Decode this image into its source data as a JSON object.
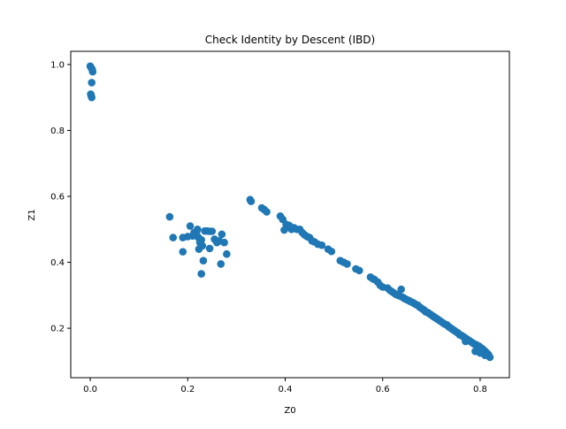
{
  "chart_data": {
    "type": "scatter",
    "title": "Check Identity by Descent (IBD)",
    "xlabel": "Z0",
    "ylabel": "Z1",
    "xlim": [
      -0.04,
      0.86
    ],
    "ylim": [
      0.05,
      1.04
    ],
    "xticks": [
      0.0,
      0.2,
      0.4,
      0.6,
      0.8
    ],
    "xtick_labels": [
      "0.0",
      "0.2",
      "0.4",
      "0.6",
      "0.8"
    ],
    "yticks": [
      0.2,
      0.4,
      0.6,
      0.8,
      1.0
    ],
    "ytick_labels": [
      "0.2",
      "0.4",
      "0.6",
      "0.8",
      "1.0"
    ],
    "grid": false,
    "legend": "none",
    "color": "#1f77b4",
    "series": [
      {
        "points": [
          [
            0.0,
            0.995
          ],
          [
            0.002,
            0.99
          ],
          [
            0.004,
            0.985
          ],
          [
            0.005,
            0.978
          ],
          [
            0.003,
            0.945
          ],
          [
            0.001,
            0.91
          ],
          [
            0.002,
            0.905
          ],
          [
            0.003,
            0.9
          ],
          [
            0.163,
            0.538
          ],
          [
            0.17,
            0.475
          ],
          [
            0.19,
            0.475
          ],
          [
            0.19,
            0.432
          ],
          [
            0.2,
            0.478
          ],
          [
            0.205,
            0.51
          ],
          [
            0.21,
            0.48
          ],
          [
            0.213,
            0.49
          ],
          [
            0.218,
            0.49
          ],
          [
            0.22,
            0.5
          ],
          [
            0.222,
            0.475
          ],
          [
            0.223,
            0.44
          ],
          [
            0.225,
            0.46
          ],
          [
            0.228,
            0.468
          ],
          [
            0.228,
            0.365
          ],
          [
            0.23,
            0.45
          ],
          [
            0.232,
            0.405
          ],
          [
            0.235,
            0.495
          ],
          [
            0.24,
            0.495
          ],
          [
            0.245,
            0.494
          ],
          [
            0.245,
            0.442
          ],
          [
            0.25,
            0.494
          ],
          [
            0.255,
            0.47
          ],
          [
            0.26,
            0.46
          ],
          [
            0.265,
            0.465
          ],
          [
            0.268,
            0.395
          ],
          [
            0.27,
            0.485
          ],
          [
            0.275,
            0.46
          ],
          [
            0.28,
            0.425
          ],
          [
            0.328,
            0.59
          ],
          [
            0.33,
            0.585
          ],
          [
            0.352,
            0.565
          ],
          [
            0.357,
            0.56
          ],
          [
            0.362,
            0.553
          ],
          [
            0.39,
            0.54
          ],
          [
            0.395,
            0.53
          ],
          [
            0.398,
            0.498
          ],
          [
            0.402,
            0.515
          ],
          [
            0.408,
            0.512
          ],
          [
            0.413,
            0.5
          ],
          [
            0.418,
            0.505
          ],
          [
            0.424,
            0.5
          ],
          [
            0.43,
            0.5
          ],
          [
            0.435,
            0.49
          ],
          [
            0.44,
            0.483
          ],
          [
            0.445,
            0.478
          ],
          [
            0.45,
            0.475
          ],
          [
            0.455,
            0.465
          ],
          [
            0.46,
            0.462
          ],
          [
            0.467,
            0.455
          ],
          [
            0.475,
            0.452
          ],
          [
            0.488,
            0.44
          ],
          [
            0.495,
            0.433
          ],
          [
            0.513,
            0.405
          ],
          [
            0.52,
            0.4
          ],
          [
            0.527,
            0.395
          ],
          [
            0.545,
            0.38
          ],
          [
            0.552,
            0.375
          ],
          [
            0.575,
            0.355
          ],
          [
            0.58,
            0.35
          ],
          [
            0.583,
            0.348
          ],
          [
            0.59,
            0.34
          ],
          [
            0.595,
            0.33
          ],
          [
            0.6,
            0.325
          ],
          [
            0.61,
            0.322
          ],
          [
            0.615,
            0.315
          ],
          [
            0.62,
            0.31
          ],
          [
            0.625,
            0.305
          ],
          [
            0.628,
            0.302
          ],
          [
            0.632,
            0.3
          ],
          [
            0.635,
            0.298
          ],
          [
            0.638,
            0.318
          ],
          [
            0.641,
            0.294
          ],
          [
            0.645,
            0.29
          ],
          [
            0.648,
            0.288
          ],
          [
            0.652,
            0.285
          ],
          [
            0.655,
            0.283
          ],
          [
            0.658,
            0.28
          ],
          [
            0.662,
            0.278
          ],
          [
            0.665,
            0.275
          ],
          [
            0.668,
            0.272
          ],
          [
            0.672,
            0.27
          ],
          [
            0.675,
            0.265
          ],
          [
            0.678,
            0.262
          ],
          [
            0.682,
            0.258
          ],
          [
            0.685,
            0.255
          ],
          [
            0.688,
            0.25
          ],
          [
            0.692,
            0.248
          ],
          [
            0.695,
            0.245
          ],
          [
            0.698,
            0.242
          ],
          [
            0.702,
            0.238
          ],
          [
            0.705,
            0.235
          ],
          [
            0.708,
            0.232
          ],
          [
            0.712,
            0.228
          ],
          [
            0.715,
            0.225
          ],
          [
            0.718,
            0.222
          ],
          [
            0.722,
            0.218
          ],
          [
            0.725,
            0.215
          ],
          [
            0.728,
            0.212
          ],
          [
            0.732,
            0.21
          ],
          [
            0.735,
            0.205
          ],
          [
            0.738,
            0.202
          ],
          [
            0.742,
            0.198
          ],
          [
            0.745,
            0.195
          ],
          [
            0.748,
            0.192
          ],
          [
            0.752,
            0.188
          ],
          [
            0.755,
            0.185
          ],
          [
            0.758,
            0.18
          ],
          [
            0.762,
            0.178
          ],
          [
            0.765,
            0.175
          ],
          [
            0.768,
            0.172
          ],
          [
            0.772,
            0.168
          ],
          [
            0.775,
            0.165
          ],
          [
            0.778,
            0.162
          ],
          [
            0.782,
            0.158
          ],
          [
            0.785,
            0.155
          ],
          [
            0.788,
            0.152
          ],
          [
            0.792,
            0.15
          ],
          [
            0.795,
            0.147
          ],
          [
            0.798,
            0.145
          ],
          [
            0.8,
            0.142
          ],
          [
            0.802,
            0.14
          ],
          [
            0.805,
            0.137
          ],
          [
            0.808,
            0.133
          ],
          [
            0.81,
            0.13
          ],
          [
            0.812,
            0.127
          ],
          [
            0.815,
            0.123
          ],
          [
            0.817,
            0.12
          ],
          [
            0.818,
            0.115
          ],
          [
            0.82,
            0.112
          ],
          [
            0.81,
            0.118
          ],
          [
            0.79,
            0.13
          ],
          [
            0.8,
            0.125
          ],
          [
            0.77,
            0.16
          ]
        ]
      }
    ]
  }
}
